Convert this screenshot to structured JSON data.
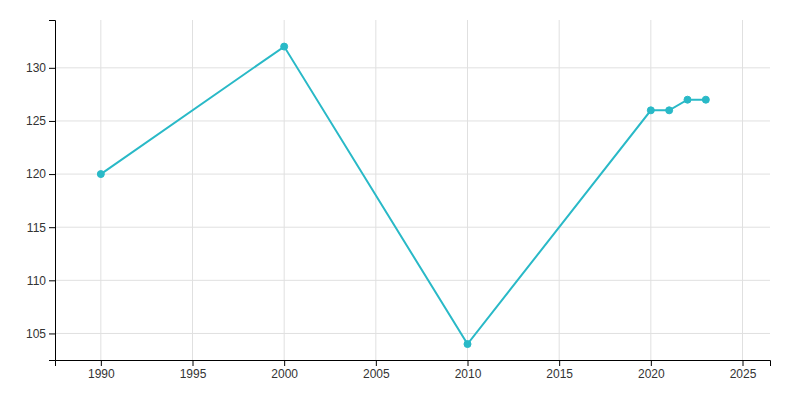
{
  "chart_data": {
    "type": "line",
    "x": [
      1990,
      2000,
      2010,
      2020,
      2021,
      2022,
      2023
    ],
    "values": [
      120,
      132,
      104,
      126,
      126,
      127,
      127
    ],
    "color": "#29b9c7",
    "marker": "circle",
    "xlim": [
      1987.5,
      2026.5
    ],
    "ylim": [
      102.5,
      134.5
    ],
    "xticks": [
      1990,
      1995,
      2000,
      2005,
      2010,
      2015,
      2020,
      2025
    ],
    "yticks": [
      105,
      110,
      115,
      120,
      125,
      130
    ],
    "grid": true
  }
}
